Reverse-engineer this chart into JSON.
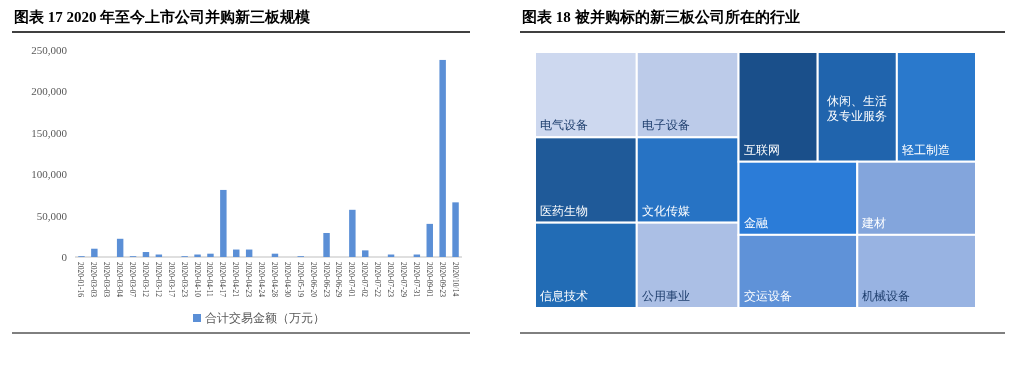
{
  "chart_data": [
    {
      "type": "bar",
      "title": "图表 17 2020 年至今上市公司并购新三板规模",
      "categories": [
        "2020-01-16",
        "2020-03-03",
        "2020-03-03",
        "2020-03-04",
        "2020-03-07",
        "2020-03-12",
        "2020-03-12",
        "2020-03-17",
        "2020-03-23",
        "2020-04-10",
        "2020-04-11",
        "2020-04-17",
        "2020-04-21",
        "2020-04-23",
        "2020-04-24",
        "2020-04-28",
        "2020-04-30",
        "2020-05-19",
        "2020-06-20",
        "2020-06-23",
        "2020-06-29",
        "2020-07-01",
        "2020-07-02",
        "2020-07-22",
        "2020-07-23",
        "2020-07-29",
        "2020-07-31",
        "2020-09-01",
        "2020-09-23",
        "2020/10/14"
      ],
      "series": [
        {
          "name": "合计交易金额（万元）",
          "color": "#5b8fd6",
          "values": [
            1000,
            10000,
            0,
            22000,
            1000,
            6000,
            3000,
            0,
            1000,
            3000,
            4000,
            81000,
            9000,
            9000,
            0,
            4000,
            0,
            1000,
            0,
            29000,
            0,
            57000,
            8000,
            0,
            3000,
            0,
            3000,
            40000,
            238000,
            66000
          ]
        }
      ],
      "ylim": [
        0,
        250000
      ],
      "yticks": [
        {
          "value": 0,
          "label": "0"
        },
        {
          "value": 50000,
          "label": "50,000"
        },
        {
          "value": 100000,
          "label": "100,000"
        },
        {
          "value": 150000,
          "label": "150,000"
        },
        {
          "value": 200000,
          "label": "200,000"
        },
        {
          "value": 250000,
          "label": "250,000"
        }
      ],
      "grid": false,
      "legend": "bottom"
    },
    {
      "type": "other",
      "title": "图表 18 被并购标的新三板公司所在的行业",
      "categories": [
        "电气设备",
        "医药生物",
        "信息技术",
        "电子设备",
        "文化传媒",
        "公用事业",
        "互联网",
        "休闲、生活及专业服务",
        "轻工制造",
        "金融",
        "交运设备",
        "建材",
        "机械设备"
      ],
      "colors": [
        "#cdd8ef",
        "#1f5a99",
        "#226cb5",
        "#bccbe9",
        "#2773c4",
        "#abbfe5",
        "#1a4f8a",
        "#2064ad",
        "#2a79cc",
        "#2b7cd8",
        "#5f92d8",
        "#83a5dc",
        "#98b3e2"
      ]
    }
  ]
}
